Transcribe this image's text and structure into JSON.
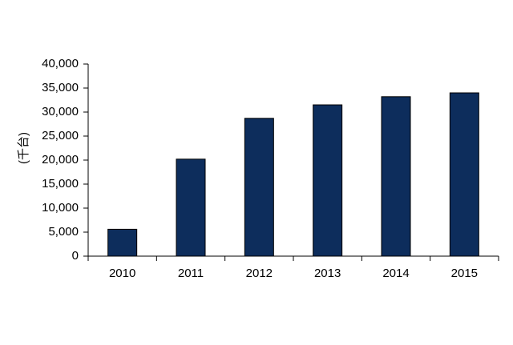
{
  "chart_data": {
    "type": "bar",
    "y_label": "(千台)",
    "categories": [
      "2010",
      "2011",
      "2012",
      "2013",
      "2014",
      "2015"
    ],
    "values": [
      5600,
      20200,
      28700,
      31500,
      33200,
      34000
    ],
    "color": "#0d2d5c",
    "ylim": [
      0,
      40000
    ],
    "yticks": [
      0,
      {
        "value": 5000,
        "label": "5,000"
      },
      {
        "value": 10000,
        "label": "10,000"
      },
      {
        "value": 15000,
        "label": "15,000"
      },
      {
        "value": 20000,
        "label": "20,000"
      },
      {
        "value": 25000,
        "label": "25,000"
      },
      {
        "value": 30000,
        "label": "30,000"
      },
      {
        "value": 35000,
        "label": "35,000"
      },
      {
        "value": 40000,
        "label": "40,000"
      }
    ],
    "grid": false
  }
}
